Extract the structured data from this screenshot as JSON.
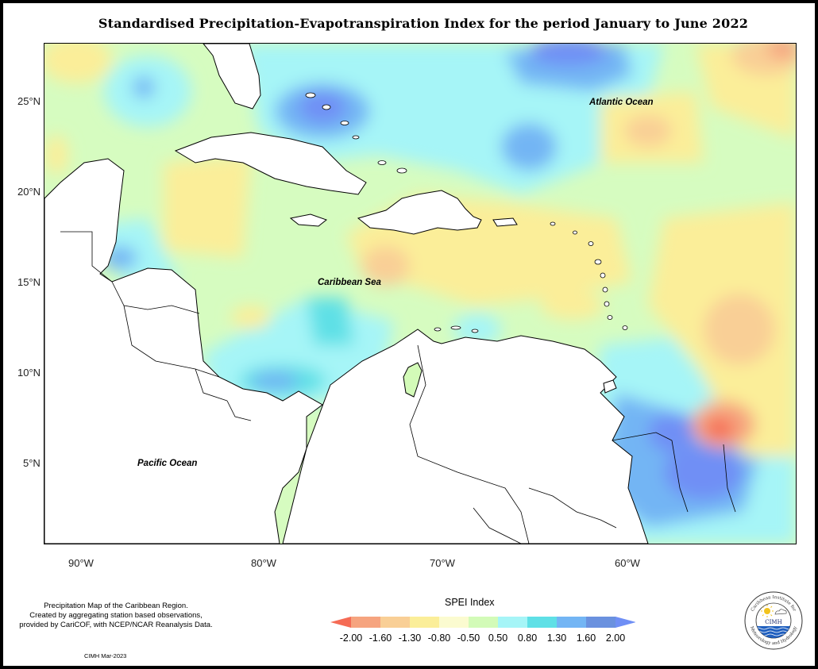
{
  "title": "Standardised Precipitation-Evapotranspiration Index for the period January to June 2022",
  "axes": {
    "y_labels": [
      "25°N",
      "20°N",
      "15°N",
      "10°N",
      "5°N"
    ],
    "x_labels": [
      "90°W",
      "80°W",
      "70°W",
      "60°W"
    ]
  },
  "ocean_labels": {
    "atlantic": "Atlantic Ocean",
    "caribbean": "Caribbean Sea",
    "pacific": "Pacific Ocean"
  },
  "info": {
    "line1": "Precipitation Map of the Caribbean Region.",
    "line2": "Created by aggregating station based observations,",
    "line3": "provided by CariCOF, with NCEP/NCAR Reanalysis Data."
  },
  "credit": "CIMH Mar-2023",
  "legend": {
    "title": "SPEI Index",
    "ticks": [
      "-2.00",
      "-1.60",
      "-1.30",
      "-0.80",
      "-0.50",
      "0.50",
      "0.80",
      "1.30",
      "1.60",
      "2.00"
    ],
    "colors": [
      "#f56b55",
      "#f6a47f",
      "#f9cf96",
      "#fbee99",
      "#fbfbd0",
      "#d3fbb8",
      "#a6f5f7",
      "#5fe0e6",
      "#73b5f4",
      "#6a91df",
      "#6f8ff5"
    ]
  },
  "logo": {
    "acronym": "CIMH",
    "ring_text_top": "Caribbean Institute for",
    "ring_text_bottom": "Meteorology and Hydrology"
  },
  "colors": {
    "map_background": "#d6fcc0",
    "land": "#ffffff"
  }
}
